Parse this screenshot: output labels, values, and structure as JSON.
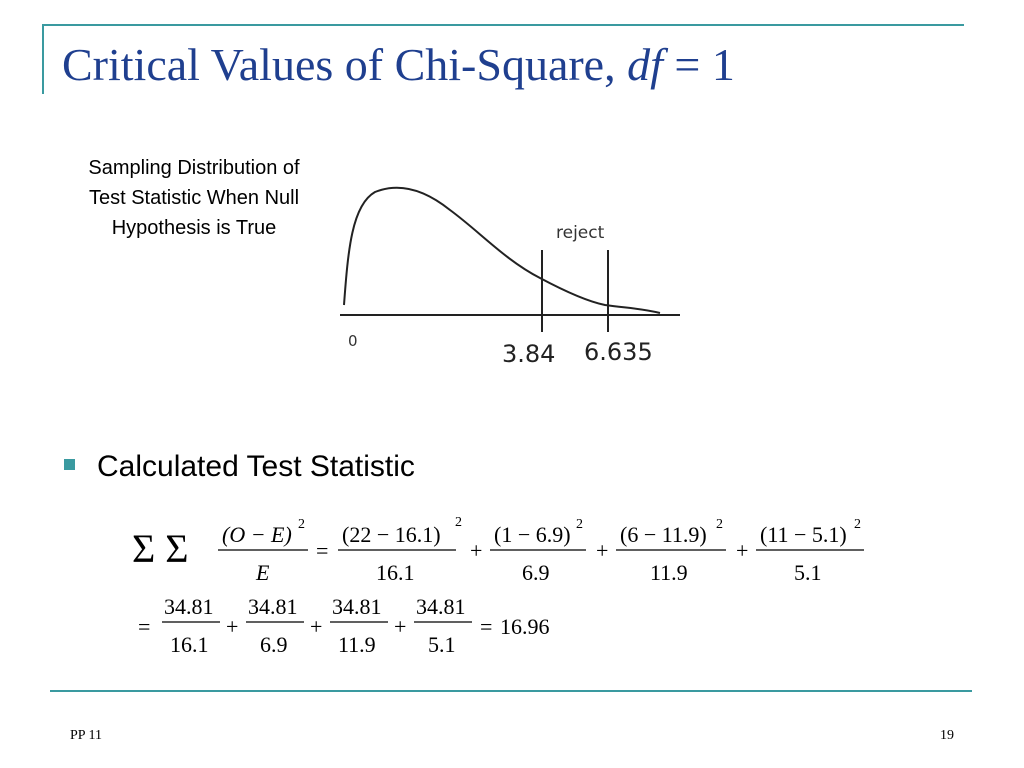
{
  "slide": {
    "title_main": "Critical Values of Chi-Square, ",
    "title_var": "df",
    "title_rest": " = 1",
    "caption_lines": [
      "Sampling Distribution of",
      "Test Statistic When Null",
      "Hypothesis is True"
    ],
    "bullet_text": "Calculated Test Statistic",
    "footer_left": "PP 11",
    "page_number": "19"
  },
  "graph": {
    "reject_label": "reject",
    "origin_label": "0",
    "critical_1": "3.84",
    "critical_2": "6.635"
  },
  "formula": {
    "sum_symbol": "Σ Σ",
    "generic_numerator": "(O − E)",
    "generic_denominator": "E",
    "power": "2",
    "equals": "=",
    "plus": "+",
    "terms": [
      {
        "numerator": "(22 − 16.1)",
        "denominator": "16.1"
      },
      {
        "numerator": "(1 − 6.9)",
        "denominator": "6.9"
      },
      {
        "numerator": "(6 − 11.9)",
        "denominator": "11.9"
      },
      {
        "numerator": "(11 − 5.1)",
        "denominator": "5.1"
      }
    ],
    "second_line_terms": [
      {
        "numerator": "34.81",
        "denominator": "16.1"
      },
      {
        "numerator": "34.81",
        "denominator": "6.9"
      },
      {
        "numerator": "34.81",
        "denominator": "11.9"
      },
      {
        "numerator": "34.81",
        "denominator": "5.1"
      }
    ],
    "result": "16.96"
  },
  "colors": {
    "accent": "#3a9aa0",
    "title": "#1f3f8f"
  }
}
